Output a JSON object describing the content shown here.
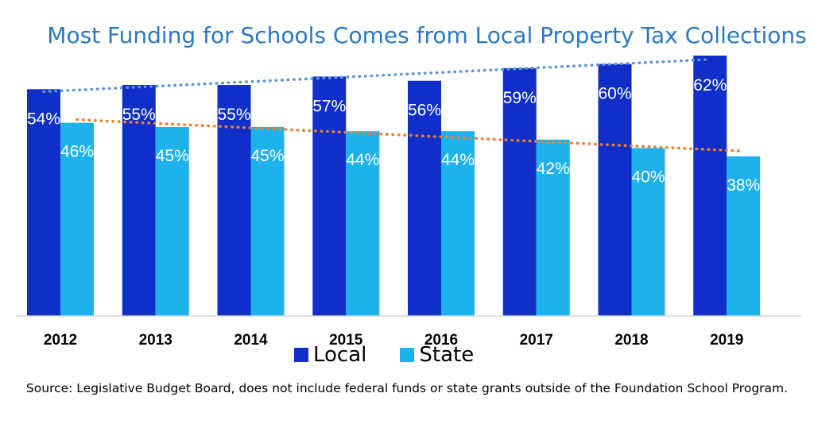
{
  "chart_data": {
    "type": "bar",
    "title": "Most Funding for Schools Comes from Local Property Tax Collections",
    "categories": [
      "2012",
      "2013",
      "2014",
      "2015",
      "2016",
      "2017",
      "2018",
      "2019"
    ],
    "series": [
      {
        "name": "Local",
        "values": [
          54,
          55,
          55,
          57,
          56,
          59,
          60,
          62
        ],
        "labels": [
          "54%",
          "55%",
          "55%",
          "57%",
          "56%",
          "59%",
          "60%",
          "62%"
        ],
        "color": "#0f2fc8",
        "trendline_color": "#5b95d6"
      },
      {
        "name": "State",
        "values": [
          46,
          45,
          45,
          44,
          44,
          42,
          40,
          38
        ],
        "labels": [
          "46%",
          "45%",
          "45%",
          "44%",
          "44%",
          "42%",
          "40%",
          "38%"
        ],
        "color": "#1eb2ec",
        "trendline_color": "#ef7d2c"
      }
    ],
    "trendlines": "dotted linear trendline per series",
    "ylim": [
      0,
      62
    ],
    "xlabel": "",
    "ylabel": "",
    "legend_position": "bottom",
    "grid": false
  },
  "legend": {
    "local": "Local",
    "state": "State"
  },
  "source": "Source: Legislative Budget Board, does not include federal funds or state grants outside of the Foundation School Program."
}
